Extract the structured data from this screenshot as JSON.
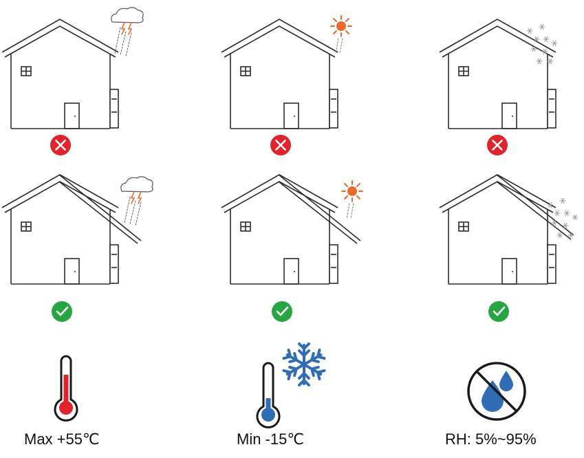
{
  "colors": {
    "line": "#2b2b2b",
    "bad": "#e0242d",
    "good": "#27a542",
    "sun": "#e86a2c",
    "snow": "#9a9a9a",
    "thermo_hot": "#e0242d",
    "thermo_cold": "#2f6db5",
    "flake": "#2f6db5",
    "drop": "#2f6db5"
  },
  "rows": [
    {
      "verdict": "not-allowed",
      "badge_icon": "cross-icon",
      "houses": [
        {
          "weather": "rain-cloud-icon",
          "placement": "unsheltered"
        },
        {
          "weather": "sun-icon",
          "placement": "unsheltered"
        },
        {
          "weather": "snow-icon",
          "placement": "unsheltered"
        }
      ]
    },
    {
      "verdict": "allowed",
      "badge_icon": "check-icon",
      "houses": [
        {
          "weather": "rain-cloud-icon",
          "placement": "under-eave"
        },
        {
          "weather": "sun-icon",
          "placement": "under-eave"
        },
        {
          "weather": "snow-icon",
          "placement": "under-eave"
        }
      ]
    }
  ],
  "conditions": [
    {
      "icon": "thermometer-hot-icon",
      "label": "Max +55℃"
    },
    {
      "icon": "thermometer-cold-snowflake-icon",
      "label": "Min -15℃"
    },
    {
      "icon": "no-water-drops-icon",
      "label": "RH: 5%~95%"
    }
  ]
}
